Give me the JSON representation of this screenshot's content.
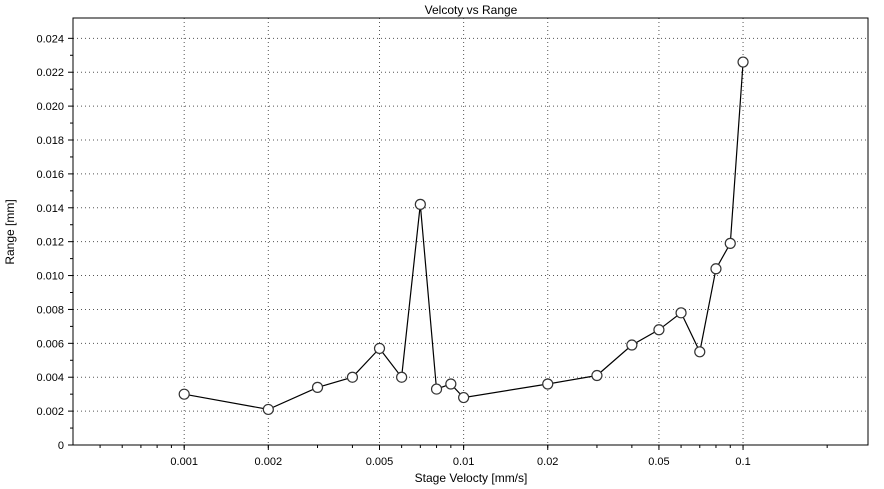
{
  "chart_data": {
    "type": "line",
    "title": "Velcoty vs Range",
    "xlabel": "Stage Velocty [mm/s]",
    "ylabel": "Range [mm]",
    "x_scale": "log",
    "xlim": [
      0.0004,
      0.28
    ],
    "ylim": [
      0,
      0.0252
    ],
    "grid": true,
    "x_ticks": [
      {
        "value": 0.001,
        "label": "0.001"
      },
      {
        "value": 0.002,
        "label": "0.002"
      },
      {
        "value": 0.005,
        "label": "0.005"
      },
      {
        "value": 0.01,
        "label": "0.01"
      },
      {
        "value": 0.02,
        "label": "0.02"
      },
      {
        "value": 0.05,
        "label": "0.05"
      },
      {
        "value": 0.1,
        "label": "0.1"
      }
    ],
    "y_ticks": [
      {
        "value": 0,
        "label": "0"
      },
      {
        "value": 0.002,
        "label": "0.002"
      },
      {
        "value": 0.004,
        "label": "0.004"
      },
      {
        "value": 0.006,
        "label": "0.006"
      },
      {
        "value": 0.008,
        "label": "0.008"
      },
      {
        "value": 0.01,
        "label": "0.010"
      },
      {
        "value": 0.012,
        "label": "0.012"
      },
      {
        "value": 0.014,
        "label": "0.014"
      },
      {
        "value": 0.016,
        "label": "0.016"
      },
      {
        "value": 0.018,
        "label": "0.018"
      },
      {
        "value": 0.02,
        "label": "0.020"
      },
      {
        "value": 0.022,
        "label": "0.022"
      },
      {
        "value": 0.024,
        "label": "0.024"
      }
    ],
    "series": [
      {
        "x": [
          0.001,
          0.002,
          0.003,
          0.004,
          0.005,
          0.006,
          0.007,
          0.008,
          0.009,
          0.01,
          0.02,
          0.03,
          0.04,
          0.05,
          0.06,
          0.07,
          0.08,
          0.09,
          0.1
        ],
        "y": [
          0.003,
          0.0021,
          0.0034,
          0.004,
          0.0057,
          0.004,
          0.0142,
          0.0033,
          0.0036,
          0.0028,
          0.0036,
          0.0041,
          0.0059,
          0.0068,
          0.0078,
          0.0055,
          0.0104,
          0.0119,
          0.0226
        ],
        "color": "#000000",
        "marker": "open-circle"
      }
    ]
  }
}
